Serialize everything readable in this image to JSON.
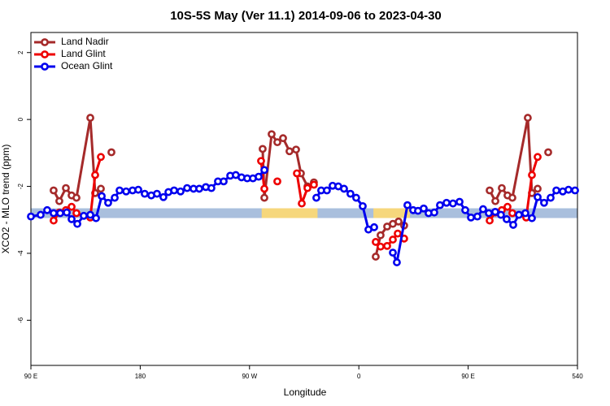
{
  "chart_data": {
    "type": "line",
    "title": "10S-5S May (Ver 11.1)   2014-09-06 to 2023-04-30",
    "xlabel": "Longitude",
    "ylabel": "XCO2 - MLO trend (ppm)",
    "xlim": [
      90,
      540
    ],
    "ylim": [
      -7.35,
      2.6
    ],
    "xticks": [
      {
        "value": 90,
        "label": "90 E"
      },
      180,
      {
        "value": 270,
        "label": "90 W"
      },
      {
        "value": 360,
        "label": "0"
      },
      {
        "value": 450,
        "label": "90 E"
      },
      540
    ],
    "yticks": [
      -6,
      -4,
      -2,
      0,
      2
    ],
    "legend": "upper left",
    "land_ocean_strip": {
      "y": -2.8,
      "ocean_color": "#a9bfdd",
      "land_color": "#f6d77c",
      "land_ranges": [
        [
          280,
          326
        ],
        [
          372,
          402
        ]
      ]
    },
    "series": [
      {
        "name": "Land Nadir",
        "color": "#a52a2a",
        "x": [
          108.7,
          113.4,
          118.8,
          123.5,
          127.5,
          138.9,
          142.9,
          147.6,
          null,
          156.3,
          null,
          280.8,
          282.2,
          288.2,
          292.9,
          297.6,
          302.9,
          308.3,
          312.3,
          317.7,
          323,
          null,
          373.9,
          377.9,
          383.3,
          388,
          392.7,
          397.3,
          null,
          467.7,
          472.4,
          477.7,
          482.4,
          486.4,
          499.1,
          502.5,
          507.2,
          null,
          515.9
        ],
        "values": [
          -2.12,
          -2.44,
          -2.05,
          -2.27,
          -2.34,
          0.05,
          -2.2,
          -2.07,
          null,
          -0.98,
          null,
          -0.88,
          -2.34,
          -0.44,
          -0.68,
          -0.56,
          -0.95,
          -0.9,
          -1.61,
          -2.0,
          -1.88,
          null,
          -4.1,
          -3.46,
          -3.2,
          -3.12,
          -3.05,
          -3.17,
          null,
          -2.12,
          -2.44,
          -2.05,
          -2.27,
          -2.34,
          0.05,
          -2.2,
          -2.07,
          null,
          -0.98
        ]
      },
      {
        "name": "Land Glint",
        "color": "#ee0000",
        "x": [
          108.7,
          113.4,
          118.8,
          123.5,
          127.5,
          138.9,
          142.9,
          147.6,
          null,
          279.5,
          282.2,
          null,
          292.9,
          null,
          309,
          313,
          317.7,
          323,
          null,
          373.9,
          377.9,
          383.3,
          388,
          392,
          397.3,
          null,
          467.7,
          472.4,
          477.7,
          482.4,
          486.4,
          497.8,
          502.5,
          507.2
        ],
        "values": [
          -3.02,
          -2.78,
          -2.71,
          -2.61,
          -2.8,
          -2.93,
          -1.66,
          -1.12,
          null,
          -1.24,
          -2.07,
          null,
          -1.85,
          null,
          -1.61,
          -2.51,
          -2.05,
          -1.95,
          null,
          -3.66,
          -3.8,
          -3.78,
          -3.59,
          -3.41,
          -3.56,
          null,
          -3.02,
          -2.78,
          -2.71,
          -2.61,
          -2.8,
          -2.93,
          -1.66,
          -1.12
        ]
      },
      {
        "name": "Ocean Glint",
        "color": "#0000ee",
        "x": [
          90,
          98,
          103.4,
          108.7,
          114.1,
          119.5,
          123.5,
          128.2,
          133.5,
          138.9,
          143.6,
          148.3,
          153.6,
          159,
          163,
          168.4,
          173.7,
          178.4,
          183.7,
          189.1,
          193.8,
          199.1,
          203.2,
          207.9,
          213.2,
          218.6,
          223.9,
          228.6,
          234,
          238.6,
          244,
          248.7,
          254.1,
          258.7,
          263.4,
          268.1,
          272.8,
          277.5,
          282.2,
          null,
          325,
          329,
          333.7,
          338.4,
          343.1,
          347.8,
          353.1,
          357.8,
          363.2,
          367.9,
          372.6,
          null,
          388,
          391.3,
          400,
          404.7,
          408.7,
          413.4,
          417.4,
          422.1,
          426.8,
          432.2,
          437.5,
          442.9,
          447.6,
          452.3,
          457.6,
          462.3,
          467,
          472.3,
          477,
          481.7,
          487.1,
          491.8,
          497.1,
          502.5,
          507.2,
          512.5,
          517.9,
          522.6,
          527.9,
          532.6,
          538
        ],
        "values": [
          -2.9,
          -2.85,
          -2.71,
          -2.8,
          -2.8,
          -2.78,
          -2.98,
          -3.12,
          -2.88,
          -2.85,
          -2.95,
          -2.29,
          -2.49,
          -2.34,
          -2.12,
          -2.15,
          -2.12,
          -2.1,
          -2.22,
          -2.27,
          -2.22,
          -2.32,
          -2.17,
          -2.12,
          -2.15,
          -2.05,
          -2.07,
          -2.07,
          -2.02,
          -2.05,
          -1.85,
          -1.85,
          -1.68,
          -1.66,
          -1.73,
          -1.76,
          -1.76,
          -1.71,
          -1.51,
          null,
          -2.34,
          -2.12,
          -2.12,
          -1.98,
          -2.0,
          -2.07,
          -2.22,
          -2.34,
          -2.59,
          -3.29,
          -3.22,
          null,
          -3.98,
          -4.27,
          -2.56,
          -2.71,
          -2.73,
          -2.66,
          -2.8,
          -2.78,
          -2.56,
          -2.49,
          -2.51,
          -2.46,
          -2.71,
          -2.93,
          -2.9,
          -2.68,
          -2.8,
          -2.76,
          -2.85,
          -2.98,
          -3.15,
          -2.85,
          -2.8,
          -2.95,
          -2.32,
          -2.49,
          -2.34,
          -2.12,
          -2.15,
          -2.1,
          -2.12
        ]
      }
    ]
  }
}
